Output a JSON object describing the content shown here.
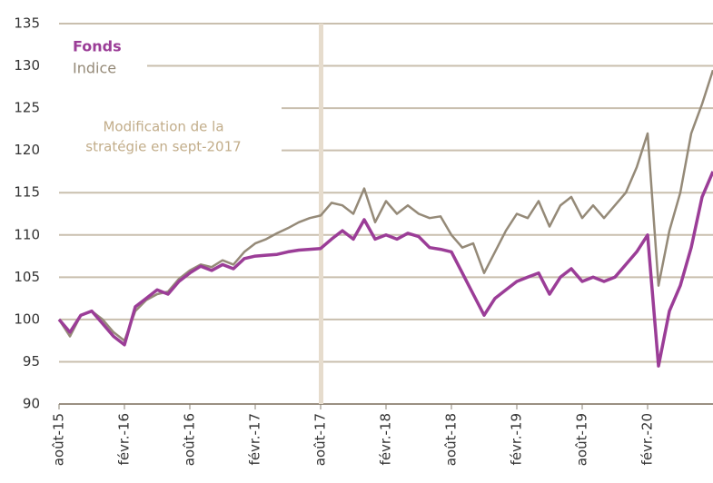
{
  "chart_data": {
    "type": "line",
    "categories": [
      "août-15",
      null,
      null,
      null,
      null,
      null,
      "févr.-16",
      null,
      null,
      null,
      null,
      null,
      "août-16",
      null,
      null,
      null,
      null,
      null,
      "févr.-17",
      null,
      null,
      null,
      null,
      null,
      "août-17",
      null,
      null,
      null,
      null,
      null,
      "févr.-18",
      null,
      null,
      null,
      null,
      null,
      "août-18",
      null,
      null,
      null,
      null,
      null,
      "févr.-19",
      null,
      null,
      null,
      null,
      null,
      "août-19",
      null,
      null,
      null,
      null,
      null,
      "févr.-20",
      null,
      null,
      null,
      null,
      null,
      null
    ],
    "series": [
      {
        "name": "Fonds",
        "color": "#9b3d97",
        "values": [
          100,
          98.5,
          100.5,
          101,
          99.5,
          98,
          97,
          101.5,
          102.5,
          103.5,
          103,
          104.5,
          105.5,
          106.3,
          105.8,
          106.5,
          106,
          107.2,
          107.5,
          107.6,
          107.7,
          108,
          108.2,
          108.3,
          108.4,
          109.5,
          110.5,
          109.5,
          111.8,
          109.5,
          110,
          109.5,
          110.2,
          109.8,
          108.5,
          108.3,
          108,
          105.5,
          103,
          100.5,
          102.5,
          103.5,
          104.5,
          105,
          105.5,
          103,
          105,
          106,
          104.5,
          105,
          104.5,
          105,
          106.5,
          108,
          110,
          94.5,
          101,
          104,
          108.5,
          114.5,
          117.5
        ]
      },
      {
        "name": "Indice",
        "color": "#958a78",
        "values": [
          100,
          98,
          100.5,
          101,
          100,
          98.5,
          97.5,
          101,
          102.3,
          103,
          103.3,
          104.8,
          105.8,
          106.5,
          106.2,
          107,
          106.5,
          108,
          109,
          109.5,
          110.2,
          110.8,
          111.5,
          112,
          112.3,
          113.8,
          113.5,
          112.5,
          115.5,
          111.5,
          114,
          112.5,
          113.5,
          112.5,
          112,
          112.2,
          110,
          108.5,
          109,
          105.5,
          108,
          110.5,
          112.5,
          112,
          114,
          111,
          113.5,
          114.5,
          112,
          113.5,
          112,
          113.5,
          115,
          118,
          122,
          104,
          110.5,
          115,
          122,
          125.5,
          129.5
        ]
      }
    ],
    "ylim": [
      90,
      135
    ],
    "yticks": [
      90,
      95,
      100,
      105,
      110,
      115,
      120,
      125,
      130,
      135
    ],
    "grid": true,
    "annotation": [
      "Modification de la",
      "stratégie en sept-2017"
    ]
  }
}
